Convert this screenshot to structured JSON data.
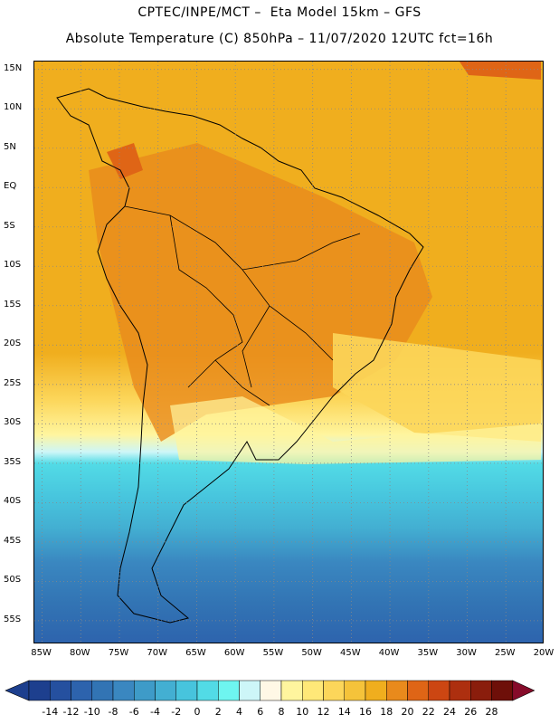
{
  "header": {
    "line1": "CPTEC/INPE/MCT –  Eta Model 15km – GFS",
    "line2": "Absolute Temperature (C) 850hPa – 11/07/2020 12UTC fct=16h"
  },
  "map": {
    "region": "South America",
    "lat_range": [
      -58,
      16
    ],
    "lon_range": [
      -86,
      -20
    ],
    "lat_labels": [
      "15N",
      "10N",
      "5N",
      "EQ",
      "5S",
      "10S",
      "15S",
      "20S",
      "25S",
      "30S",
      "35S",
      "40S",
      "45S",
      "50S",
      "55S"
    ],
    "lon_labels": [
      "85W",
      "80W",
      "75W",
      "70W",
      "65W",
      "60W",
      "55W",
      "50W",
      "45W",
      "40W",
      "35W",
      "30W",
      "25W",
      "20W"
    ],
    "gridlines": "dotted"
  },
  "colorbar": {
    "labels": [
      "-14",
      "-12",
      "-10",
      "-8",
      "-6",
      "-4",
      "-2",
      "0",
      "2",
      "4",
      "6",
      "8",
      "10",
      "12",
      "14",
      "16",
      "18",
      "20",
      "22",
      "24",
      "26",
      "28"
    ],
    "colors": [
      "#1d3f8e",
      "#25509f",
      "#2d63ad",
      "#3274b4",
      "#3a87c0",
      "#3e9bc8",
      "#43afd2",
      "#47c4dd",
      "#52dbe6",
      "#6ef5f0",
      "#cdf6f8",
      "#fff8e6",
      "#fff59e",
      "#ffe878",
      "#fcd65a",
      "#f5c33a",
      "#f0ae1e",
      "#e98a1c",
      "#df6516",
      "#cc4612",
      "#ad2f0f",
      "#8a1d0c",
      "#6e0f09",
      "#860b2a"
    ],
    "units": "C"
  }
}
